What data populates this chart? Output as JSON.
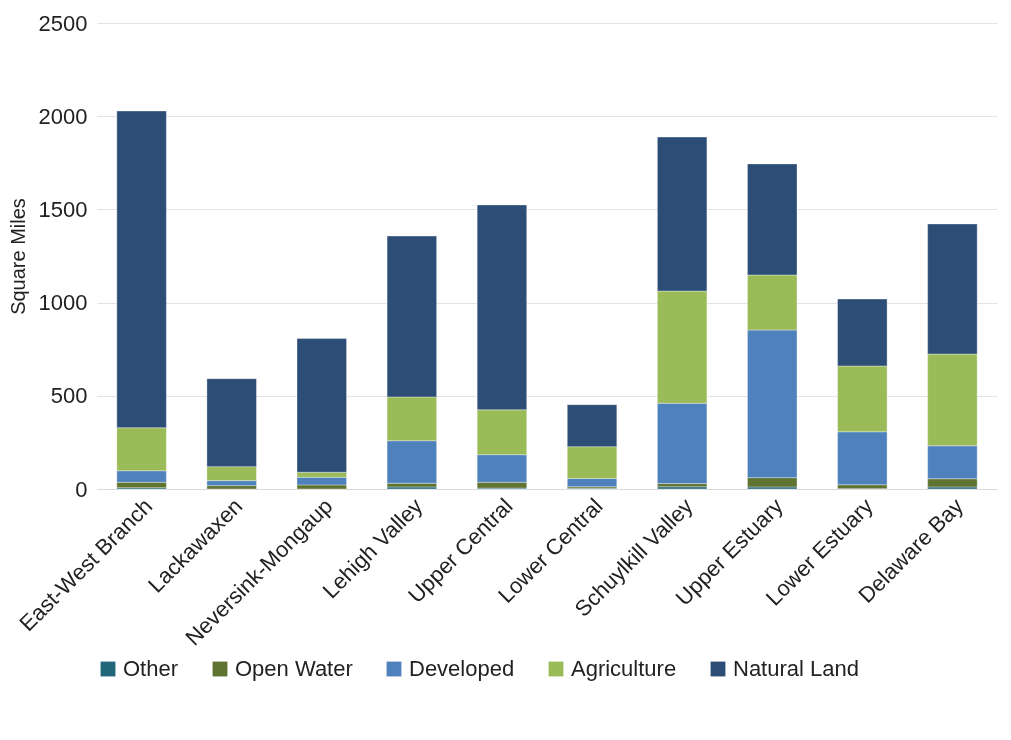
{
  "chart_data": {
    "type": "bar",
    "stacked": true,
    "ylabel": "Square Miles",
    "categories": [
      "East-West Branch",
      "Lackawaxen",
      "Neversink-Mongaup",
      "Lehigh Valley",
      "Upper Central",
      "Lower Central",
      "Schuylkill Valley",
      "Upper Estuary",
      "Lower Estuary",
      "Delaware Bay"
    ],
    "series": [
      {
        "name": "Other",
        "color": "#22667a",
        "values": [
          7,
          null,
          null,
          11,
          5,
          4,
          12,
          11,
          2,
          11
        ]
      },
      {
        "name": "Open Water",
        "color": "#5e7430",
        "values": [
          29,
          18,
          22,
          20,
          31,
          8,
          17,
          50,
          21,
          44
        ]
      },
      {
        "name": "Developed",
        "color": "#4f81bd",
        "values": [
          62,
          27,
          41,
          228,
          148,
          45,
          431,
          792,
          284,
          177
        ]
      },
      {
        "name": "Agriculture",
        "color": "#9bbb59",
        "values": [
          231,
          75,
          27,
          235,
          241,
          170,
          602,
          295,
          353,
          492
        ]
      },
      {
        "name": "Natural Land",
        "color": "#2c4d75",
        "values": [
          1699,
          472,
          717,
          863,
          1099,
          225,
          826,
          596,
          359,
          698
        ]
      }
    ],
    "ylim": [
      0,
      2500
    ],
    "yticks": [
      0,
      500,
      1000,
      1500,
      2000,
      2500
    ],
    "grid": "y",
    "legend": "bottom"
  }
}
